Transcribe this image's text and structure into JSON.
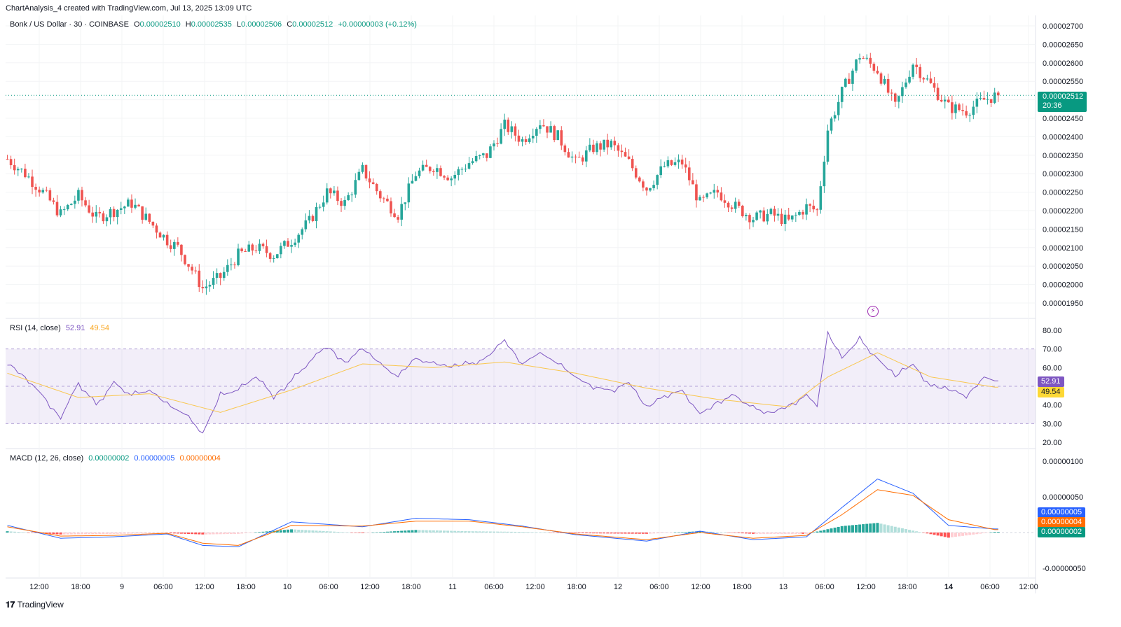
{
  "watermark": "ChartAnalysis_4 created with TradingView.com, Jul 13, 2025 13:09 UTC",
  "legend": {
    "symbol": "Bonk / US Dollar · 30 · COINBASE",
    "o_label": "O",
    "o_value": "0.00002510",
    "h_label": "H",
    "h_value": "0.00002535",
    "l_label": "L",
    "l_value": "0.00002506",
    "c_label": "C",
    "c_value": "0.00002512",
    "change": "+0.00000003 (+0.12%)"
  },
  "rsi_legend": {
    "label": "RSI (14, close)",
    "rsi": "52.91",
    "ma": "49.54"
  },
  "macd_legend": {
    "label": "MACD (12, 26, close)",
    "hist": "0.00000002",
    "macd": "0.00000005",
    "signal": "0.00000004"
  },
  "price_tag": {
    "price": "0.00002512",
    "countdown": "20:36"
  },
  "rsi_tags": {
    "rsi": "52.91",
    "ma": "49.54"
  },
  "macd_tags": {
    "macd": "0.00000005",
    "signal": "0.00000004",
    "hist": "0.00000002"
  },
  "brand": "TradingView",
  "colors": {
    "up": "#26a69a",
    "down": "#ef5350",
    "rsi": "#7e57c2",
    "rsi_ma": "#fdd835",
    "macd": "#2962ff",
    "signal": "#ff6d00",
    "tag_green": "#089981"
  },
  "chart_data": [
    {
      "type": "candlestick",
      "title": "Bonk / US Dollar · 30 · COINBASE",
      "ylim": [
        1.9e-06,
        2.7e-06
      ],
      "y_ticks": [
        "0.00002700",
        "0.00002650",
        "0.00002600",
        "0.00002550",
        "0.00002500",
        "0.00002450",
        "0.00002400",
        "0.00002350",
        "0.00002300",
        "0.00002250",
        "0.00002200",
        "0.00002150",
        "0.00002100",
        "0.00002050",
        "0.00002000",
        "0.00001950"
      ],
      "x_ticks": [
        "12:00",
        "18:00",
        "9",
        "06:00",
        "12:00",
        "18:00",
        "10",
        "06:00",
        "12:00",
        "18:00",
        "11",
        "06:00",
        "12:00",
        "18:00",
        "12",
        "06:00",
        "12:00",
        "18:00",
        "13",
        "06:00",
        "12:00",
        "18:00",
        "14",
        "06:00",
        "12:00"
      ],
      "close_path": [
        [
          0,
          2.34
        ],
        [
          5,
          2.3
        ],
        [
          10,
          2.25
        ],
        [
          15,
          2.19
        ],
        [
          20,
          2.24
        ],
        [
          25,
          2.18
        ],
        [
          30,
          2.2
        ],
        [
          35,
          2.22
        ],
        [
          40,
          2.17
        ],
        [
          45,
          2.12
        ],
        [
          48,
          2.1
        ],
        [
          52,
          2.04
        ],
        [
          55,
          1.99
        ],
        [
          60,
          2.02
        ],
        [
          65,
          2.08
        ],
        [
          70,
          2.1
        ],
        [
          75,
          2.08
        ],
        [
          80,
          2.12
        ],
        [
          85,
          2.17
        ],
        [
          90,
          2.25
        ],
        [
          95,
          2.22
        ],
        [
          100,
          2.31
        ],
        [
          105,
          2.24
        ],
        [
          110,
          2.19
        ],
        [
          115,
          2.3
        ],
        [
          120,
          2.32
        ],
        [
          125,
          2.29
        ],
        [
          130,
          2.33
        ],
        [
          135,
          2.35
        ],
        [
          140,
          2.43
        ],
        [
          145,
          2.39
        ],
        [
          150,
          2.44
        ],
        [
          155,
          2.4
        ],
        [
          160,
          2.33
        ],
        [
          165,
          2.37
        ],
        [
          170,
          2.38
        ],
        [
          175,
          2.33
        ],
        [
          180,
          2.26
        ],
        [
          185,
          2.32
        ],
        [
          190,
          2.33
        ],
        [
          195,
          2.22
        ],
        [
          200,
          2.25
        ],
        [
          205,
          2.21
        ],
        [
          210,
          2.18
        ],
        [
          215,
          2.19
        ],
        [
          220,
          2.17
        ],
        [
          225,
          2.21
        ],
        [
          228,
          2.2
        ],
        [
          231,
          2.42
        ],
        [
          235,
          2.52
        ],
        [
          240,
          2.62
        ],
        [
          245,
          2.58
        ],
        [
          250,
          2.48
        ],
        [
          255,
          2.6
        ],
        [
          260,
          2.54
        ],
        [
          265,
          2.48
        ],
        [
          270,
          2.47
        ],
        [
          275,
          2.5
        ],
        [
          278,
          2.51
        ]
      ],
      "last_price": 2.512e-05
    },
    {
      "type": "line",
      "title": "RSI (14, close)",
      "ylim": [
        20,
        80
      ],
      "y_ticks": [
        "80.00",
        "70.00",
        "60.00",
        "50.00",
        "40.00",
        "30.00",
        "20.00"
      ],
      "band": [
        30,
        70
      ],
      "series": [
        {
          "name": "RSI",
          "points": [
            [
              0,
              63
            ],
            [
              5,
              55
            ],
            [
              10,
              45
            ],
            [
              15,
              33
            ],
            [
              20,
              52
            ],
            [
              25,
              40
            ],
            [
              30,
              52
            ],
            [
              35,
              45
            ],
            [
              40,
              48
            ],
            [
              45,
              40
            ],
            [
              50,
              35
            ],
            [
              55,
              25
            ],
            [
              60,
              45
            ],
            [
              65,
              48
            ],
            [
              70,
              55
            ],
            [
              75,
              45
            ],
            [
              80,
              53
            ],
            [
              85,
              63
            ],
            [
              90,
              72
            ],
            [
              95,
              63
            ],
            [
              100,
              70
            ],
            [
              105,
              62
            ],
            [
              110,
              55
            ],
            [
              115,
              65
            ],
            [
              120,
              62
            ],
            [
              125,
              60
            ],
            [
              130,
              62
            ],
            [
              135,
              65
            ],
            [
              140,
              75
            ],
            [
              145,
              62
            ],
            [
              150,
              68
            ],
            [
              155,
              62
            ],
            [
              160,
              55
            ],
            [
              165,
              50
            ],
            [
              170,
              48
            ],
            [
              175,
              52
            ],
            [
              180,
              38
            ],
            [
              185,
              45
            ],
            [
              190,
              48
            ],
            [
              195,
              35
            ],
            [
              200,
              42
            ],
            [
              205,
              45
            ],
            [
              210,
              38
            ],
            [
              215,
              36
            ],
            [
              220,
              40
            ],
            [
              225,
              45
            ],
            [
              228,
              40
            ],
            [
              231,
              78
            ],
            [
              235,
              65
            ],
            [
              240,
              75
            ],
            [
              245,
              65
            ],
            [
              250,
              55
            ],
            [
              255,
              62
            ],
            [
              260,
              50
            ],
            [
              265,
              48
            ],
            [
              270,
              45
            ],
            [
              275,
              55
            ],
            [
              278,
              52.91
            ]
          ]
        },
        {
          "name": "MA",
          "points": [
            [
              0,
              57
            ],
            [
              20,
              44
            ],
            [
              40,
              46
            ],
            [
              60,
              36
            ],
            [
              80,
              48
            ],
            [
              100,
              62
            ],
            [
              120,
              60
            ],
            [
              140,
              63
            ],
            [
              160,
              57
            ],
            [
              180,
              49
            ],
            [
              200,
              43
            ],
            [
              220,
              39
            ],
            [
              231,
              55
            ],
            [
              245,
              68
            ],
            [
              260,
              55
            ],
            [
              278,
              49.54
            ]
          ]
        }
      ]
    },
    {
      "type": "line+bar",
      "title": "MACD (12, 26, close)",
      "ylim": [
        -5e-08,
        1.05e-07
      ],
      "y_ticks": [
        "0.00000100",
        "0.00000050",
        "-0.00000050"
      ],
      "series": [
        {
          "name": "MACD",
          "points": [
            [
              0,
              1.0
            ],
            [
              15,
              -0.8
            ],
            [
              30,
              -0.6
            ],
            [
              45,
              -0.2
            ],
            [
              55,
              -1.8
            ],
            [
              65,
              -2.0
            ],
            [
              80,
              1.5
            ],
            [
              100,
              0.8
            ],
            [
              115,
              2.0
            ],
            [
              130,
              1.8
            ],
            [
              145,
              0.9
            ],
            [
              160,
              -0.3
            ],
            [
              180,
              -1.2
            ],
            [
              195,
              0.2
            ],
            [
              210,
              -1.0
            ],
            [
              225,
              -0.6
            ],
            [
              235,
              3.5
            ],
            [
              245,
              7.5
            ],
            [
              255,
              5.5
            ],
            [
              265,
              1.0
            ],
            [
              278,
              0.5
            ]
          ]
        },
        {
          "name": "Signal",
          "points": [
            [
              0,
              0.8
            ],
            [
              15,
              -0.5
            ],
            [
              30,
              -0.4
            ],
            [
              45,
              -0.1
            ],
            [
              55,
              -1.5
            ],
            [
              65,
              -1.8
            ],
            [
              80,
              1.0
            ],
            [
              100,
              0.9
            ],
            [
              115,
              1.6
            ],
            [
              130,
              1.6
            ],
            [
              145,
              0.8
            ],
            [
              160,
              -0.2
            ],
            [
              180,
              -1.0
            ],
            [
              195,
              0.0
            ],
            [
              210,
              -0.8
            ],
            [
              225,
              -0.4
            ],
            [
              235,
              2.5
            ],
            [
              245,
              6.0
            ],
            [
              255,
              5.2
            ],
            [
              265,
              1.8
            ],
            [
              278,
              0.4
            ]
          ]
        }
      ]
    }
  ]
}
